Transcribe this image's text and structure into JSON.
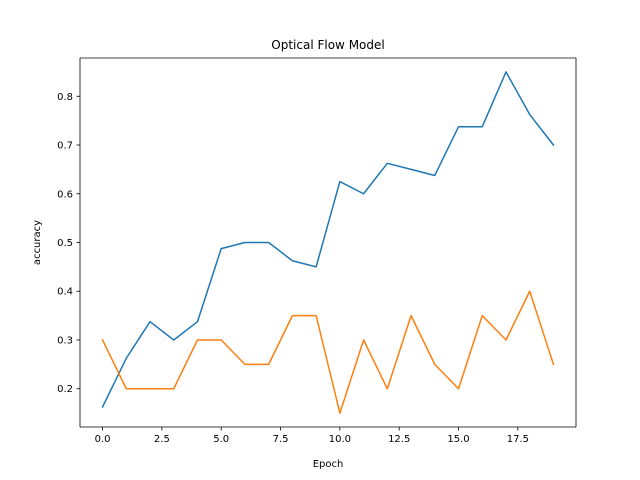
{
  "chart_data": {
    "type": "line",
    "title": "Optical Flow Model",
    "xlabel": "Epoch",
    "ylabel": "accuracy",
    "xlim": [
      -0.95,
      19.95
    ],
    "ylim": [
      0.1215,
      0.8785
    ],
    "x_ticks": [
      0.0,
      2.5,
      5.0,
      7.5,
      10.0,
      12.5,
      15.0,
      17.5
    ],
    "x_tick_labels": [
      "0.0",
      "2.5",
      "5.0",
      "7.5",
      "10.0",
      "12.5",
      "15.0",
      "17.5"
    ],
    "y_ticks": [
      0.2,
      0.3,
      0.4,
      0.5,
      0.6,
      0.7,
      0.8
    ],
    "y_tick_labels": [
      "0.2",
      "0.3",
      "0.4",
      "0.5",
      "0.6",
      "0.7",
      "0.8"
    ],
    "grid": false,
    "x": [
      0,
      1,
      2,
      3,
      4,
      5,
      6,
      7,
      8,
      9,
      10,
      11,
      12,
      13,
      14,
      15,
      16,
      17,
      18,
      19
    ],
    "series": [
      {
        "color": "#1f77b4",
        "values": [
          0.1625,
          0.2625,
          0.3375,
          0.3,
          0.3375,
          0.4875,
          0.5,
          0.5,
          0.4625,
          0.45,
          0.625,
          0.6,
          0.6625,
          0.65,
          0.6375,
          0.7375,
          0.7375,
          0.85,
          0.7625,
          0.7
        ]
      },
      {
        "color": "#ff7f0e",
        "values": [
          0.3,
          0.2,
          0.2,
          0.2,
          0.3,
          0.3,
          0.25,
          0.25,
          0.35,
          0.35,
          0.15,
          0.3,
          0.2,
          0.35,
          0.25,
          0.2,
          0.35,
          0.3,
          0.4,
          0.25
        ]
      }
    ]
  }
}
